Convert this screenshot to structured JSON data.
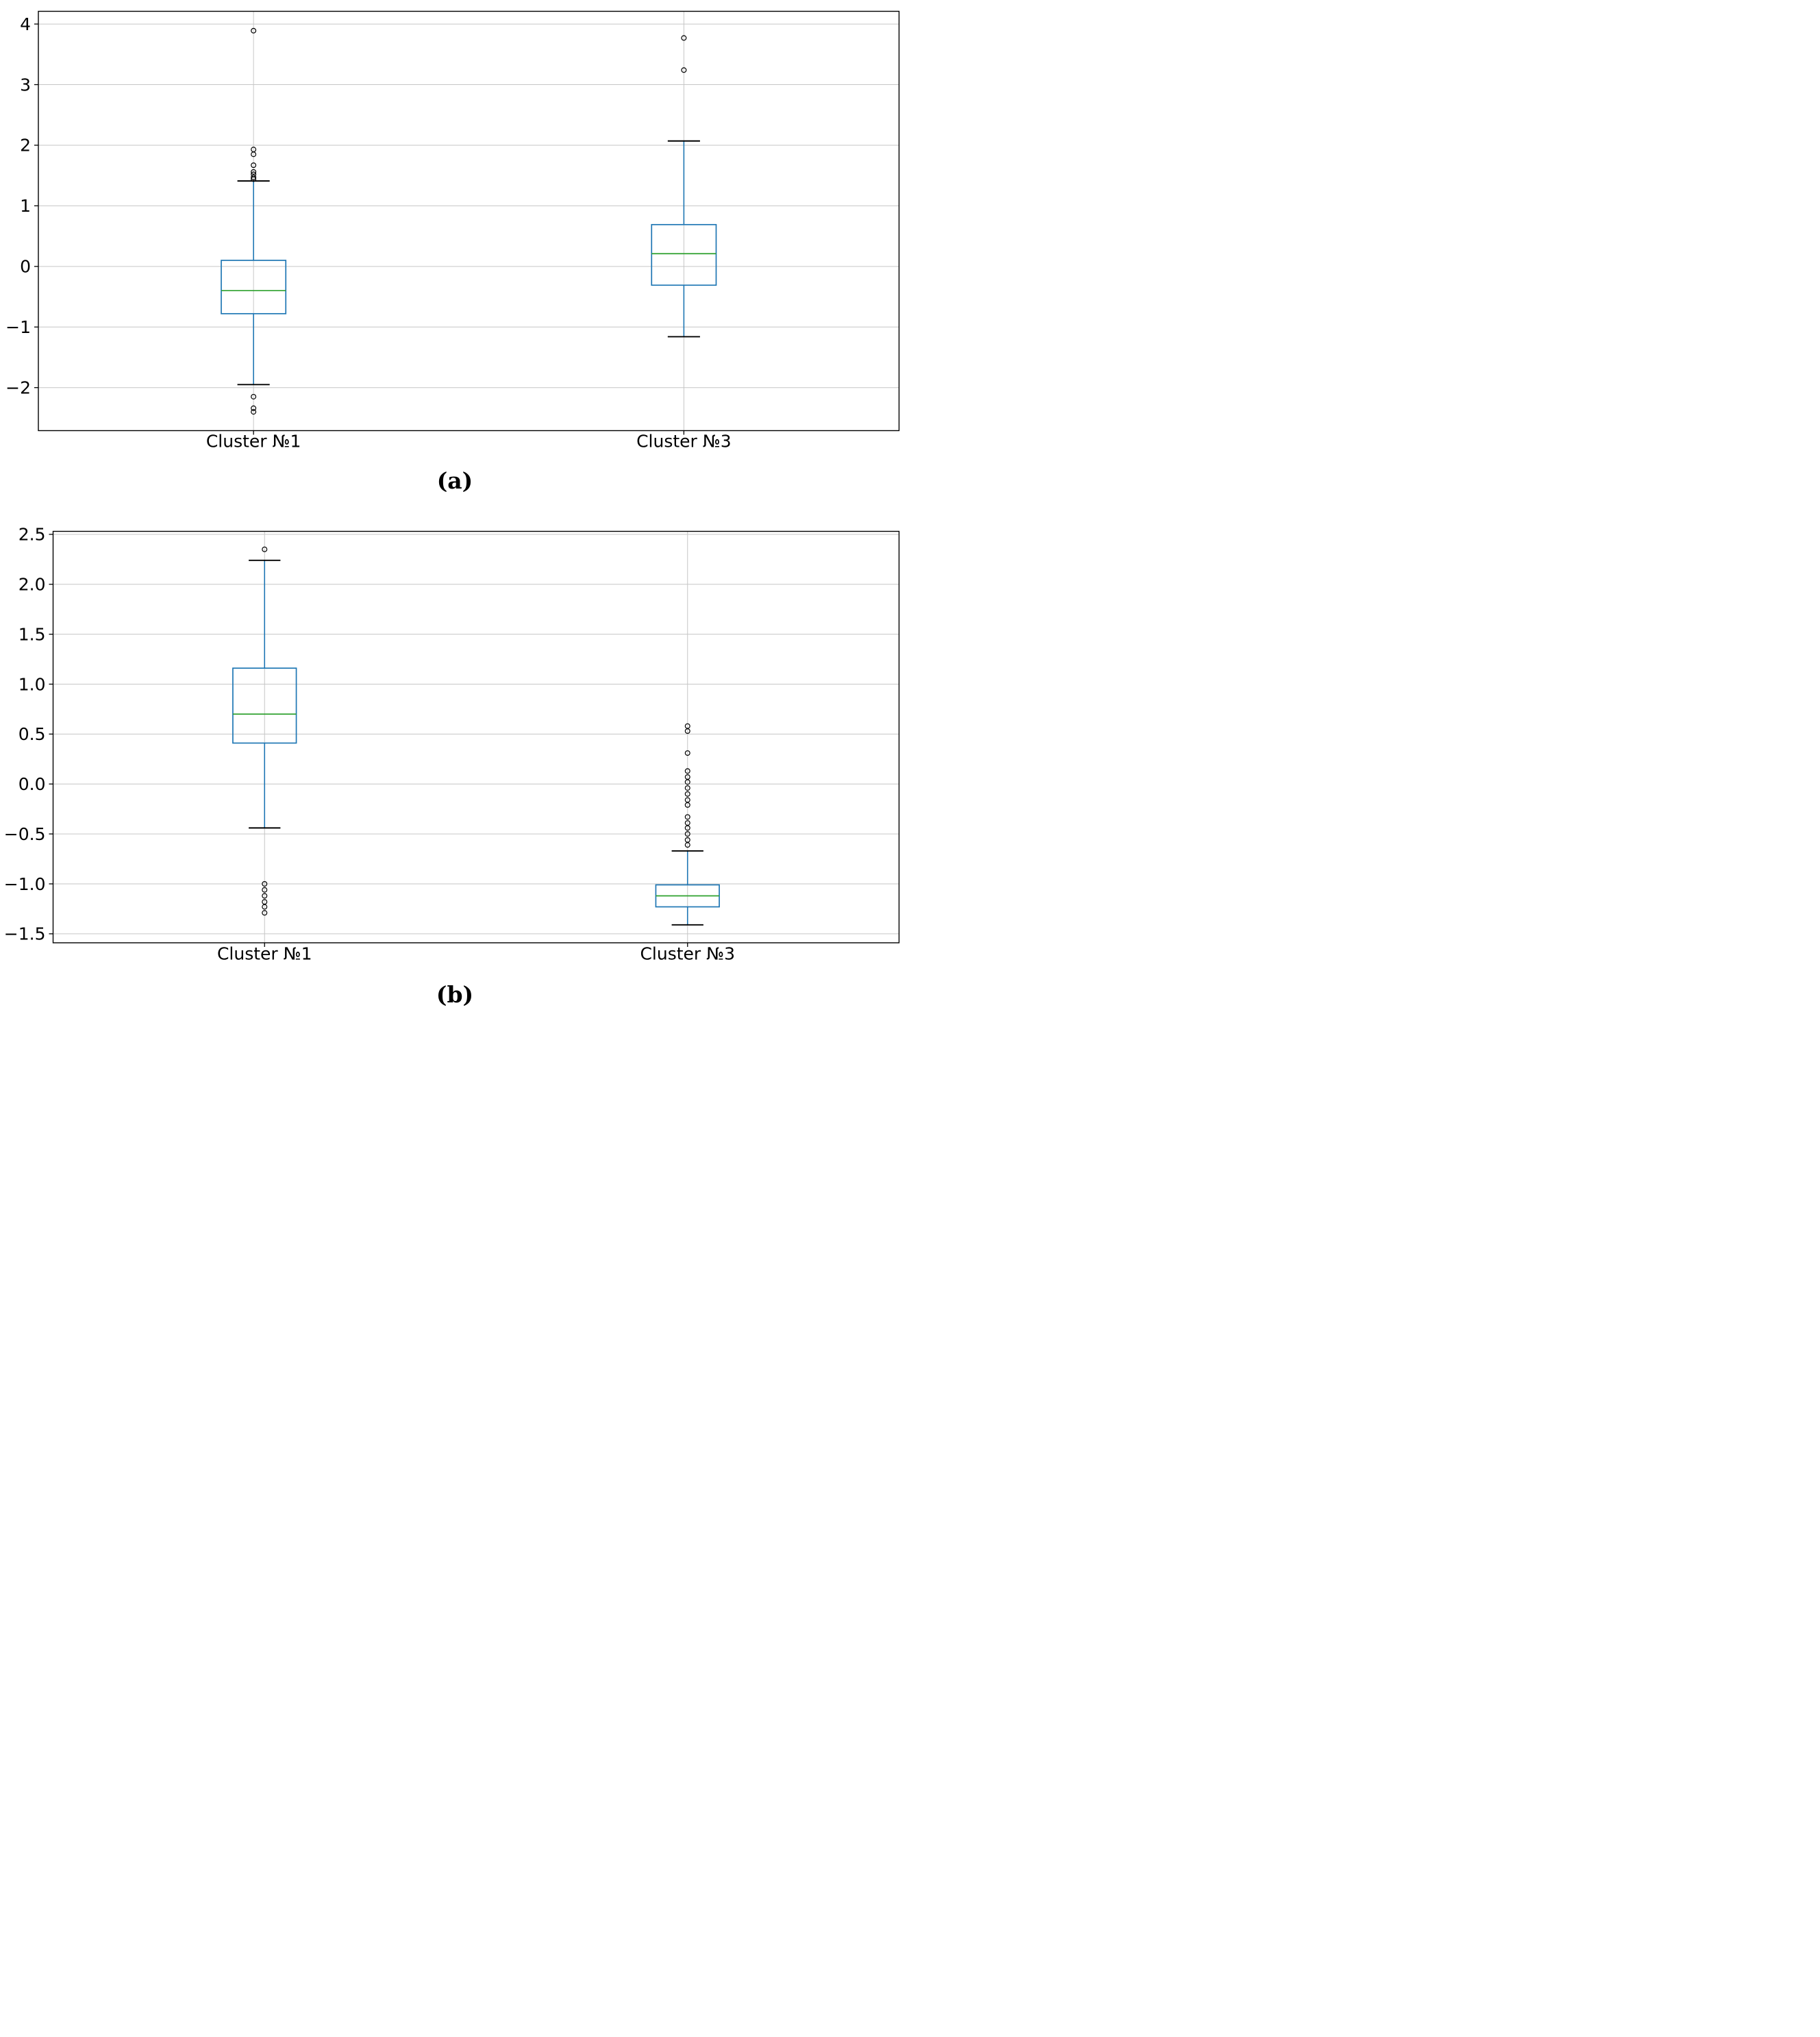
{
  "figure": {
    "background": "#ffffff"
  },
  "colors": {
    "box": "#1f77b4",
    "whisker": "#1f77b4",
    "cap": "#000000",
    "median": "#2ca02c",
    "outlier": "#000000",
    "grid": "#c6c6c6",
    "spine": "#000000",
    "text": "#000000"
  },
  "chart_data": [
    {
      "type": "boxplot",
      "panel": "a",
      "caption": "(a)",
      "categories": [
        "Cluster №1",
        "Cluster №3"
      ],
      "ylim": [
        -2.71,
        4.21
      ],
      "grid": true,
      "legend": "none",
      "yticks": [
        {
          "v": 4,
          "label": "4"
        },
        {
          "v": 3,
          "label": "3"
        },
        {
          "v": 2,
          "label": "2"
        },
        {
          "v": 1,
          "label": "1"
        },
        {
          "v": 0,
          "label": "0"
        },
        {
          "v": -1,
          "label": "−1"
        },
        {
          "v": -2,
          "label": "−2"
        }
      ],
      "series": [
        {
          "name": "Cluster №1",
          "whisker_low": -1.95,
          "q1": -0.78,
          "median": -0.4,
          "q3": 0.1,
          "whisker_high": 1.41,
          "outliers": [
            3.89,
            1.93,
            1.85,
            1.67,
            1.56,
            1.52,
            1.47,
            1.44,
            -2.15,
            -2.34,
            -2.4
          ]
        },
        {
          "name": "Cluster №3",
          "whisker_low": -1.16,
          "q1": -0.31,
          "median": 0.21,
          "q3": 0.69,
          "whisker_high": 2.07,
          "outliers": [
            3.77,
            3.24
          ]
        }
      ]
    },
    {
      "type": "boxplot",
      "panel": "b",
      "caption": "(b)",
      "categories": [
        "Cluster №1",
        "Cluster №3"
      ],
      "ylim": [
        -1.59,
        2.53
      ],
      "grid": true,
      "legend": "none",
      "yticks": [
        {
          "v": 2.5,
          "label": "2.5"
        },
        {
          "v": 2.0,
          "label": "2.0"
        },
        {
          "v": 1.5,
          "label": "1.5"
        },
        {
          "v": 1.0,
          "label": "1.0"
        },
        {
          "v": 0.5,
          "label": "0.5"
        },
        {
          "v": 0.0,
          "label": "0.0"
        },
        {
          "v": -0.5,
          "label": "−0.5"
        },
        {
          "v": -1.0,
          "label": "−1.0"
        },
        {
          "v": -1.5,
          "label": "−1.5"
        }
      ],
      "series": [
        {
          "name": "Cluster №1",
          "whisker_low": -0.44,
          "q1": 0.41,
          "median": 0.7,
          "q3": 1.16,
          "whisker_high": 2.24,
          "outliers": [
            2.35,
            -1.0,
            -1.06,
            -1.12,
            -1.18,
            -1.23,
            -1.29
          ]
        },
        {
          "name": "Cluster №3",
          "whisker_low": -1.41,
          "q1": -1.23,
          "median": -1.12,
          "q3": -1.01,
          "whisker_high": -0.67,
          "outliers": [
            0.58,
            0.53,
            0.31,
            0.13,
            0.07,
            0.02,
            -0.04,
            -0.1,
            -0.16,
            -0.21,
            -0.33,
            -0.39,
            -0.44,
            -0.5,
            -0.56,
            -0.61
          ]
        }
      ]
    }
  ]
}
